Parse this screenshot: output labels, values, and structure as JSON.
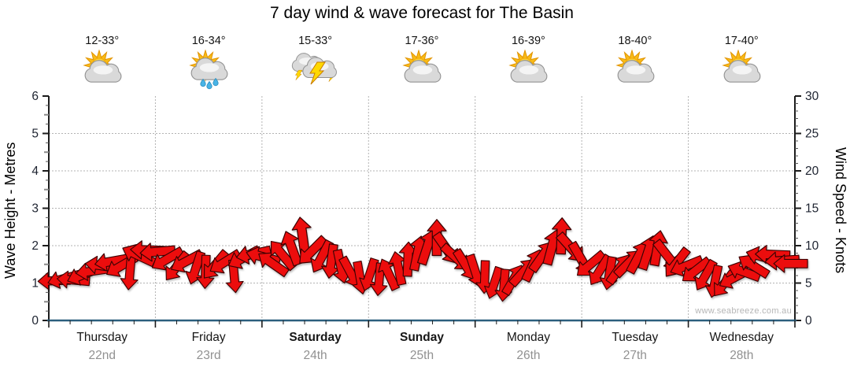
{
  "title": "7 day wind & wave forecast for The Basin",
  "watermark": "www.seabreeze.com.au",
  "left_axis": {
    "label": "Wave Height - Metres",
    "min": 0,
    "max": 6,
    "ticks": [
      0,
      1,
      2,
      3,
      4,
      5,
      6
    ]
  },
  "right_axis": {
    "label": "Wind Speed - Knots",
    "min": 0,
    "max": 30,
    "ticks": [
      0,
      5,
      10,
      15,
      20,
      25,
      30
    ]
  },
  "days": [
    {
      "name": "Thursday",
      "date": "22nd",
      "temp": "12-33°",
      "icon": "partly-cloudy-icon",
      "bold": false
    },
    {
      "name": "Friday",
      "date": "23rd",
      "temp": "16-34°",
      "icon": "sun-showers-icon",
      "bold": false
    },
    {
      "name": "Saturday",
      "date": "24th",
      "temp": "15-33°",
      "icon": "thunderstorm-icon",
      "bold": true
    },
    {
      "name": "Sunday",
      "date": "25th",
      "temp": "17-36°",
      "icon": "partly-cloudy-icon",
      "bold": true
    },
    {
      "name": "Monday",
      "date": "26th",
      "temp": "16-39°",
      "icon": "partly-cloudy-icon",
      "bold": false
    },
    {
      "name": "Tuesday",
      "date": "27th",
      "temp": "18-40°",
      "icon": "partly-cloudy-icon",
      "bold": false
    },
    {
      "name": "Wednesday",
      "date": "28th",
      "temp": "17-40°",
      "icon": "partly-cloudy-icon",
      "bold": false
    }
  ],
  "colors": {
    "arrow_fill": "#ec1111",
    "arrow_outline": "#3c0505",
    "axis_dark": "#1c1c1c",
    "axis_bottom_blue": "#2b5e7d",
    "grid_dotted": "#b3b3b3",
    "tick_label": "#1d2330",
    "date_gray": "#919191",
    "watermark_gray": "#b6b6b6"
  },
  "chart_data": {
    "type": "scatter",
    "subtype": "wind-direction-arrow-band",
    "title": "7 day wind & wave forecast for The Basin",
    "xlabel": "",
    "ylabel_left": "Wave Height - Metres",
    "ylabel_right": "Wind Speed - Knots",
    "ylim_left": [
      0,
      6
    ],
    "ylim_right": [
      0,
      30
    ],
    "x_range_days": [
      0,
      7
    ],
    "grid": "dotted horizontal at 1-5 m and vertical at day boundaries",
    "legend": "none",
    "x_categories": [
      "Thursday 22nd",
      "Friday 23rd",
      "Saturday 24th",
      "Sunday 25th",
      "Monday 26th",
      "Tuesday 27th",
      "Wednesday 28th"
    ],
    "daily_temps_c": [
      "12-33",
      "16-34",
      "15-33",
      "17-36",
      "16-39",
      "18-40",
      "17-40"
    ],
    "daily_conditions": [
      "partly-cloudy",
      "sun-showers",
      "thunderstorm",
      "partly-cloudy",
      "partly-cloudy",
      "partly-cloudy",
      "partly-cloudy"
    ],
    "arrow_fields": [
      "day_position",
      "wind_speed_knots",
      "direction_deg_0right_90down"
    ],
    "arrows": [
      [
        0.05,
        5.3,
        178
      ],
      [
        0.14,
        5.6,
        165
      ],
      [
        0.23,
        5.4,
        185
      ],
      [
        0.32,
        6.1,
        158
      ],
      [
        0.41,
        6.6,
        172
      ],
      [
        0.5,
        7.3,
        188
      ],
      [
        0.59,
        7.9,
        170
      ],
      [
        0.68,
        7.3,
        150
      ],
      [
        0.76,
        6.3,
        95
      ],
      [
        0.84,
        8.7,
        205
      ],
      [
        0.93,
        9.4,
        182
      ],
      [
        1.02,
        9.2,
        175
      ],
      [
        1.11,
        8.2,
        150
      ],
      [
        1.2,
        7.2,
        128
      ],
      [
        1.29,
        7.9,
        152
      ],
      [
        1.38,
        7.0,
        108
      ],
      [
        1.47,
        6.5,
        92
      ],
      [
        1.56,
        7.4,
        130
      ],
      [
        1.65,
        7.8,
        148
      ],
      [
        1.74,
        5.9,
        85
      ],
      [
        1.83,
        8.4,
        152
      ],
      [
        1.92,
        8.9,
        168
      ],
      [
        2.01,
        8.5,
        195
      ],
      [
        2.1,
        7.6,
        215
      ],
      [
        2.19,
        8.8,
        230
      ],
      [
        2.28,
        9.7,
        250
      ],
      [
        2.38,
        11.4,
        262
      ],
      [
        2.47,
        9.3,
        135
      ],
      [
        2.56,
        8.5,
        118
      ],
      [
        2.65,
        7.9,
        98
      ],
      [
        2.74,
        7.2,
        78
      ],
      [
        2.83,
        6.4,
        62
      ],
      [
        2.92,
        5.7,
        80
      ],
      [
        3.01,
        6.1,
        108
      ],
      [
        3.1,
        5.5,
        95
      ],
      [
        3.19,
        6.2,
        245
      ],
      [
        3.28,
        7.0,
        258
      ],
      [
        3.37,
        8.2,
        272
      ],
      [
        3.46,
        9.0,
        282
      ],
      [
        3.55,
        9.8,
        288
      ],
      [
        3.64,
        11.1,
        270
      ],
      [
        3.73,
        9.6,
        55
      ],
      [
        3.82,
        8.4,
        42
      ],
      [
        3.91,
        7.4,
        58
      ],
      [
        4.0,
        6.6,
        72
      ],
      [
        4.09,
        5.8,
        92
      ],
      [
        4.18,
        5.0,
        108
      ],
      [
        4.27,
        4.7,
        95
      ],
      [
        4.36,
        5.5,
        300
      ],
      [
        4.45,
        6.5,
        312
      ],
      [
        4.54,
        7.4,
        295
      ],
      [
        4.63,
        8.6,
        305
      ],
      [
        4.72,
        9.8,
        285
      ],
      [
        4.81,
        11.3,
        272
      ],
      [
        4.9,
        9.7,
        48
      ],
      [
        4.99,
        8.3,
        60
      ],
      [
        5.08,
        7.5,
        140
      ],
      [
        5.17,
        6.7,
        122
      ],
      [
        5.26,
        6.3,
        100
      ],
      [
        5.35,
        6.9,
        305
      ],
      [
        5.44,
        7.7,
        315
      ],
      [
        5.53,
        8.5,
        298
      ],
      [
        5.62,
        9.1,
        288
      ],
      [
        5.71,
        9.7,
        280
      ],
      [
        5.8,
        8.7,
        52
      ],
      [
        5.89,
        7.7,
        128
      ],
      [
        5.98,
        7.3,
        158
      ],
      [
        6.07,
        6.7,
        142
      ],
      [
        6.16,
        6.0,
        120
      ],
      [
        6.25,
        5.2,
        102
      ],
      [
        6.34,
        5.0,
        128
      ],
      [
        6.43,
        5.7,
        152
      ],
      [
        6.52,
        6.5,
        200
      ],
      [
        6.61,
        7.3,
        212
      ],
      [
        6.7,
        8.5,
        196
      ],
      [
        6.79,
        8.8,
        182
      ],
      [
        6.88,
        8.0,
        176
      ],
      [
        6.96,
        7.6,
        180
      ]
    ]
  }
}
